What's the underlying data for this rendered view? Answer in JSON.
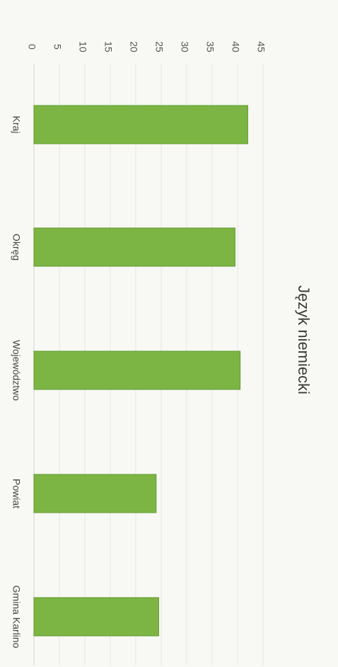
{
  "chart_data": {
    "type": "bar",
    "orientation": "rotated 90 degrees clockwise (page rotated)",
    "title": "Język niemiecki",
    "categories": [
      "Kraj",
      "Okręg",
      "Województwo",
      "Powiat",
      "Gmina Karlino"
    ],
    "values": [
      42,
      39.5,
      40.5,
      24,
      24.5
    ],
    "yticks": [
      0,
      5,
      10,
      15,
      20,
      25,
      30,
      35,
      40,
      45
    ],
    "ylim": [
      0,
      45
    ],
    "grid": true,
    "legend": "none",
    "bar_color": "#7cb544",
    "bar_edge_color": "#5e9a2a"
  }
}
